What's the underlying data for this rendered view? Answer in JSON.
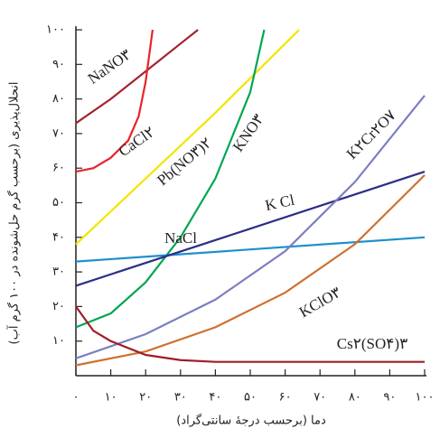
{
  "chart_data": {
    "type": "line",
    "x_label": "دما (برحسب درجهٔ سانتی‌گراد)",
    "y_label": "انحلال‌پذیری (برحسب گرم حل‌شونده در ۱۰۰ گرم آب)",
    "xlim": [
      0,
      100
    ],
    "ylim": [
      0,
      100
    ],
    "xticks": [
      {
        "value": 0,
        "label": "۰"
      },
      {
        "value": 10,
        "label": "۱۰"
      },
      {
        "value": 20,
        "label": "۲۰"
      },
      {
        "value": 30,
        "label": "۳۰"
      },
      {
        "value": 40,
        "label": "۴۰"
      },
      {
        "value": 50,
        "label": "۵۰"
      },
      {
        "value": 60,
        "label": "۶۰"
      },
      {
        "value": 70,
        "label": "۷۰"
      },
      {
        "value": 80,
        "label": "۸۰"
      },
      {
        "value": 90,
        "label": "۹۰"
      },
      {
        "value": 100,
        "label": "۱۰۰"
      }
    ],
    "yticks": [
      {
        "value": 10,
        "label": "۱۰"
      },
      {
        "value": 20,
        "label": "۲۰"
      },
      {
        "value": 30,
        "label": "۳۰"
      },
      {
        "value": 40,
        "label": "۴۰"
      },
      {
        "value": 50,
        "label": "۵۰"
      },
      {
        "value": 60,
        "label": "۶۰"
      },
      {
        "value": 70,
        "label": "۷۰"
      },
      {
        "value": 80,
        "label": "۸۰"
      },
      {
        "value": 90,
        "label": "۹۰"
      },
      {
        "value": 100,
        "label": "۱۰۰"
      }
    ],
    "grid": false,
    "series": [
      {
        "name": "NaNO۳",
        "color": "#a3232c",
        "x": [
          0,
          10,
          20,
          30,
          35
        ],
        "values": [
          73,
          80,
          88,
          96,
          100
        ]
      },
      {
        "name": "CaCl۲",
        "color": "#e8232a",
        "x": [
          0,
          5,
          10,
          15,
          18,
          20,
          22
        ],
        "values": [
          59,
          60,
          63,
          68,
          75,
          85,
          100
        ]
      },
      {
        "name": "Pb(NO۳)۲",
        "color": "#f3e500",
        "x": [
          0,
          20,
          40,
          60,
          64
        ],
        "values": [
          38,
          57,
          76,
          96,
          100
        ]
      },
      {
        "name": "KNO۳",
        "color": "#00a651",
        "x": [
          0,
          10,
          20,
          30,
          40,
          50,
          54
        ],
        "values": [
          14,
          18,
          27,
          40,
          57,
          82,
          100
        ]
      },
      {
        "name": "NaCl",
        "color": "#1e90cc",
        "x": [
          0,
          100
        ],
        "values": [
          33,
          40
        ]
      },
      {
        "name": "K Cl",
        "color": "#2b2f86",
        "x": [
          0,
          100
        ],
        "values": [
          26,
          59
        ]
      },
      {
        "name": "K۲Cr۲O۷",
        "color": "#7b7fc0",
        "x": [
          0,
          20,
          40,
          60,
          80,
          100
        ],
        "values": [
          5,
          12,
          22,
          36,
          56,
          81
        ]
      },
      {
        "name": "KClO۳",
        "color": "#d07030",
        "x": [
          0,
          20,
          40,
          60,
          80,
          100
        ],
        "values": [
          3,
          7,
          14,
          24,
          38,
          58
        ]
      },
      {
        "name": "Cs۲(SO۴)۳",
        "color": "#a01c2a",
        "x": [
          0,
          5,
          10,
          20,
          30,
          40,
          100
        ],
        "values": [
          20,
          13,
          10,
          6,
          4.5,
          4,
          4
        ]
      }
    ]
  }
}
